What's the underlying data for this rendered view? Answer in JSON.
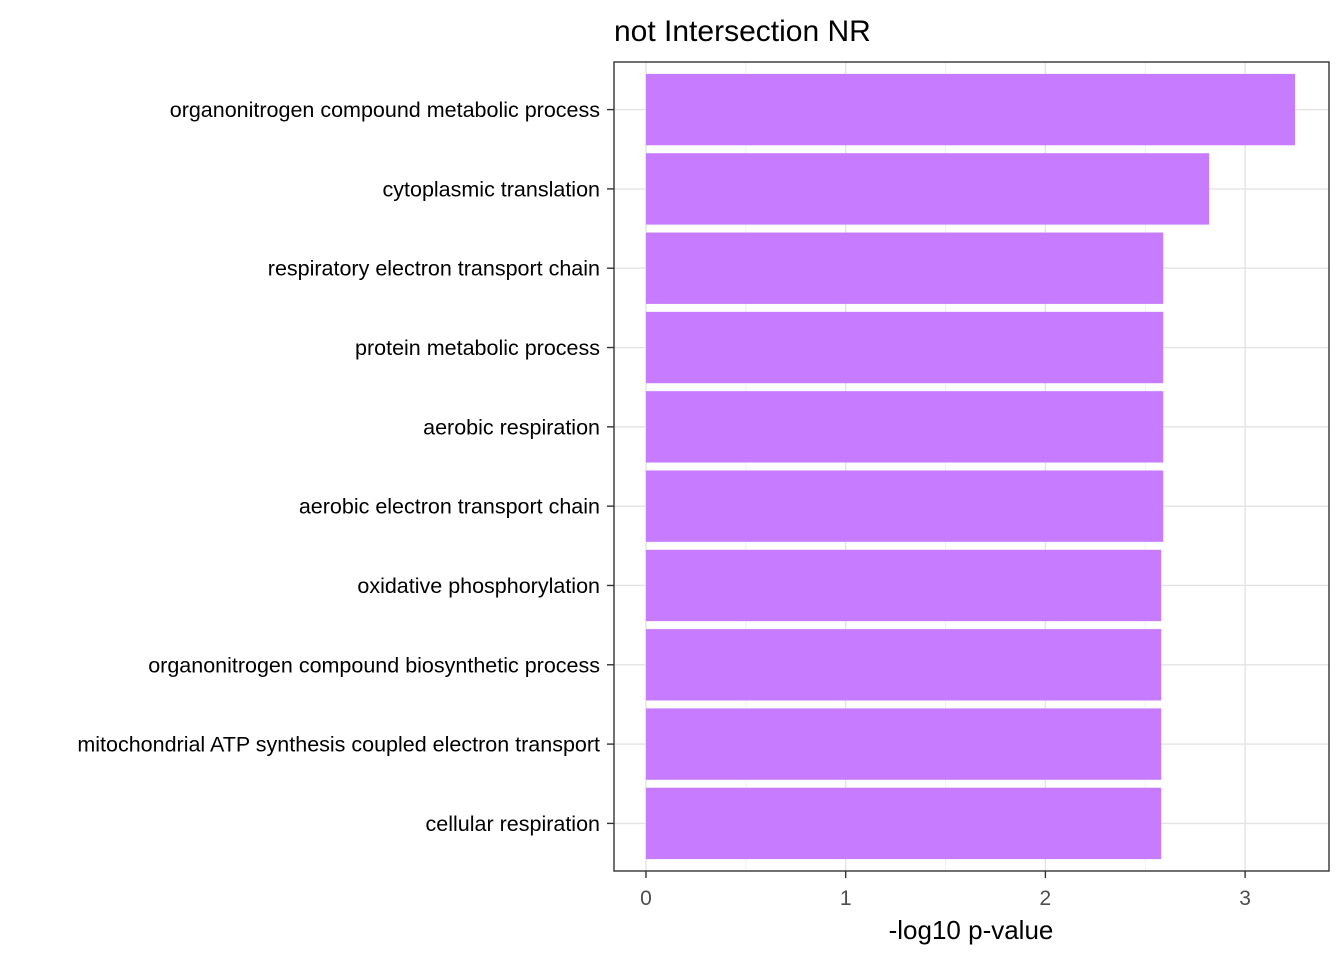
{
  "chart_data": {
    "type": "bar",
    "orientation": "horizontal",
    "title": "not Intersection NR",
    "xlabel": "-log10 p-value",
    "ylabel": "",
    "xlim": [
      -0.16,
      3.42
    ],
    "xticks": [
      0,
      1,
      2,
      3
    ],
    "grid": true,
    "bar_color": "#c77cff",
    "categories": [
      "organonitrogen compound metabolic process",
      "cytoplasmic translation",
      "respiratory electron transport chain",
      "protein metabolic process",
      "aerobic respiration",
      "aerobic electron transport chain",
      "oxidative phosphorylation",
      "organonitrogen compound biosynthetic process",
      "mitochondrial ATP synthesis coupled electron transport",
      "cellular respiration"
    ],
    "values": [
      3.25,
      2.82,
      2.59,
      2.59,
      2.59,
      2.59,
      2.58,
      2.58,
      2.58,
      2.58
    ]
  }
}
